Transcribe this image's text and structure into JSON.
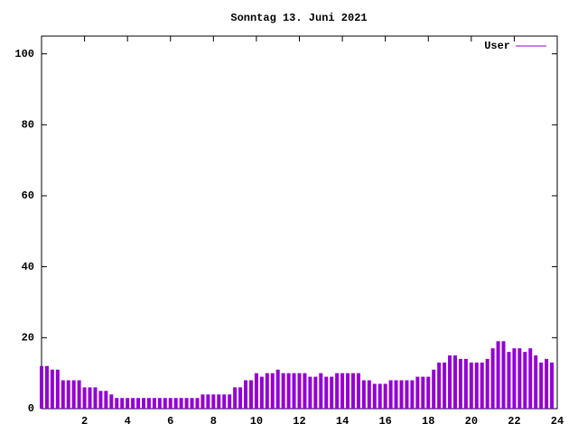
{
  "chart_data": {
    "type": "impulse",
    "title": "Sonntag 13. Juni 2021",
    "xlim": [
      0,
      24
    ],
    "xticks": [
      2,
      4,
      6,
      8,
      10,
      12,
      14,
      16,
      18,
      20,
      22,
      24
    ],
    "ylim": [
      0,
      105
    ],
    "yticks": [
      0,
      20,
      40,
      60,
      80,
      100
    ],
    "legend": "top-right",
    "x": [
      0,
      0.25,
      0.5,
      0.75,
      1,
      1.25,
      1.5,
      1.75,
      2,
      2.25,
      2.5,
      2.75,
      3,
      3.25,
      3.5,
      3.75,
      4,
      4.25,
      4.5,
      4.75,
      5,
      5.25,
      5.5,
      5.75,
      6,
      6.25,
      6.5,
      6.75,
      7,
      7.25,
      7.5,
      7.75,
      8,
      8.25,
      8.5,
      8.75,
      9,
      9.25,
      9.5,
      9.75,
      10,
      10.25,
      10.5,
      10.75,
      11,
      11.25,
      11.5,
      11.75,
      12,
      12.25,
      12.5,
      12.75,
      13,
      13.25,
      13.5,
      13.75,
      14,
      14.25,
      14.5,
      14.75,
      15,
      15.25,
      15.5,
      15.75,
      16,
      16.25,
      16.5,
      16.75,
      17,
      17.25,
      17.5,
      17.75,
      18,
      18.25,
      18.5,
      18.75,
      19,
      19.25,
      19.5,
      19.75,
      20,
      20.25,
      20.5,
      20.75,
      21,
      21.25,
      21.5,
      21.75,
      22,
      22.25,
      22.5,
      22.75,
      23,
      23.25,
      23.5,
      23.75
    ],
    "series": [
      {
        "name": "User",
        "color": "#9400d3",
        "values": [
          12,
          12,
          11,
          11,
          8,
          8,
          8,
          8,
          6,
          6,
          6,
          5,
          5,
          4,
          3,
          3,
          3,
          3,
          3,
          3,
          3,
          3,
          3,
          3,
          3,
          3,
          3,
          3,
          3,
          3,
          4,
          4,
          4,
          4,
          4,
          4,
          6,
          6,
          8,
          8,
          10,
          9,
          10,
          10,
          11,
          10,
          10,
          10,
          10,
          10,
          9,
          9,
          10,
          9,
          9,
          10,
          10,
          10,
          10,
          10,
          8,
          8,
          7,
          7,
          7,
          8,
          8,
          8,
          8,
          8,
          9,
          9,
          9,
          11,
          13,
          13,
          15,
          15,
          14,
          14,
          13,
          13,
          13,
          14,
          17,
          19,
          19,
          16,
          17,
          17,
          16,
          17,
          15,
          13,
          14,
          13
        ]
      }
    ]
  }
}
